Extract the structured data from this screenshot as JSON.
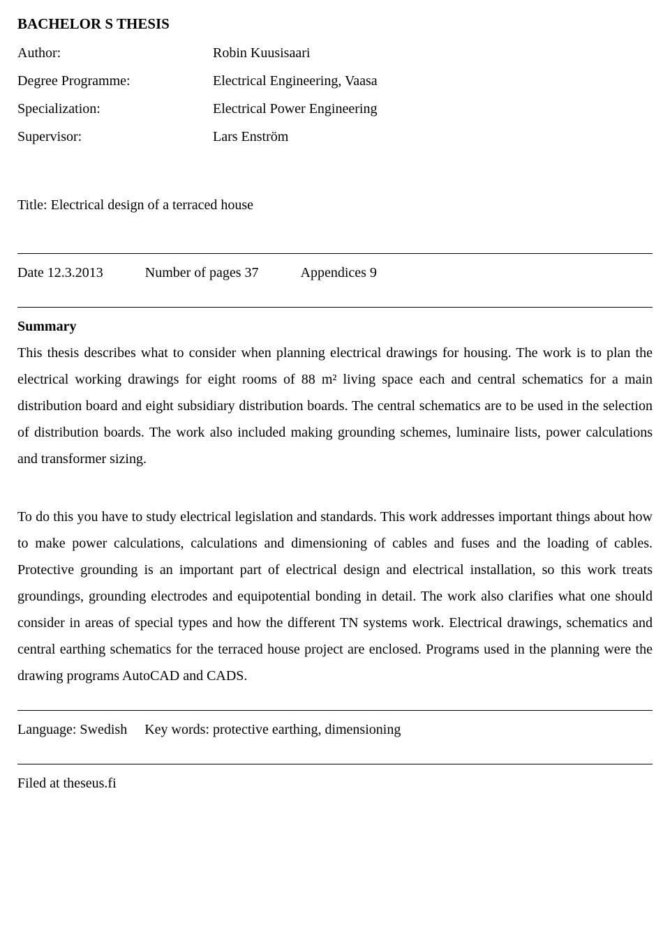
{
  "heading": "BACHELOR S THESIS",
  "meta": {
    "author_label": "Author:",
    "author_value": "Robin Kuusisaari",
    "degree_label": "Degree  Programme:",
    "degree_value": "Electrical Engineering, Vaasa",
    "specialization_label": "Specialization:",
    "specialization_value": "Electrical Power Engineering",
    "supervisor_label": "Supervisor:",
    "supervisor_value": "Lars Enström"
  },
  "title": "Title: Electrical design of a terraced house",
  "dateline": {
    "date": "Date 12.3.2013",
    "pages": "Number of pages 37",
    "appendices": "Appendices 9"
  },
  "summary_heading": "Summary",
  "summary_p1": "This thesis describes what to consider when planning electrical drawings for housing. The work is to plan the electrical working drawings for eight rooms of 88 m² living space each and central schematics for a main distribution board and eight subsidiary distribution boards. The central schematics are to be used in the selection of distribution boards. The work also included making grounding schemes, luminaire lists, power calculations and transformer sizing.",
  "summary_p2": "To do this you have to study electrical legislation and standards. This work addresses important things about how to make power calculations, calculations and dimensioning of cables and fuses and the loading of cables. Protective grounding is an important part of electrical design and electrical installation, so this work treats groundings, grounding electrodes and equipotential bonding in detail. The work also clarifies what one should consider in areas of special types and how the different TN systems work. Electrical drawings, schematics and central earthing schematics for the terraced house project are enclosed. Programs used in the planning were the drawing programs AutoCAD and CADS.",
  "language": "Language: Swedish",
  "keywords": "Key words: protective earthing, dimensioning",
  "filed": "Filed at theseus.fi"
}
